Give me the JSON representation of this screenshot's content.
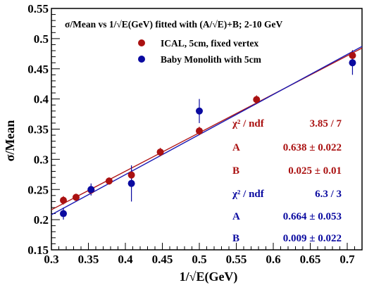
{
  "colors": {
    "ical": "#aa1111",
    "monolith": "#0a0aa0",
    "fit_ical": "#b01515",
    "fit_monolith": "#1a1ab4"
  },
  "chart_data": {
    "type": "scatter",
    "title": "σ/Mean vs 1/√E(GeV) fitted with (A/√E)+B; 2-10 GeV",
    "xlabel": "1/√E(GeV)",
    "ylabel": "σ/Mean",
    "xlim": [
      0.3,
      0.72
    ],
    "ylim": [
      0.15,
      0.55
    ],
    "xticks": [
      "0.3",
      "0.35",
      "0.4",
      "0.45",
      "0.5",
      "0.55",
      "0.6",
      "0.65",
      "0.7"
    ],
    "yticks": [
      "0.15",
      "0.2",
      "0.25",
      "0.3",
      "0.35",
      "0.4",
      "0.45",
      "0.5",
      "0.55"
    ],
    "grid": false,
    "legend_position": "top-left",
    "series": [
      {
        "name": "ICAL, 5cm, fixed vertex",
        "color": "#aa1111",
        "x": [
          0.3162,
          0.3333,
          0.3536,
          0.378,
          0.4082,
          0.4472,
          0.5,
          0.5774,
          0.7071
        ],
        "y": [
          0.232,
          0.237,
          0.249,
          0.264,
          0.274,
          0.312,
          0.347,
          0.399,
          0.472
        ],
        "yerr": [
          0.007,
          0.006,
          0.007,
          0.006,
          0.009,
          0.007,
          0.007,
          0.007,
          0.009
        ],
        "fit": {
          "A": 0.638,
          "B": 0.025
        }
      },
      {
        "name": "Baby Monolith with 5cm",
        "color": "#0a0aa0",
        "x": [
          0.3162,
          0.3536,
          0.4082,
          0.5,
          0.7071
        ],
        "y": [
          0.21,
          0.25,
          0.26,
          0.38,
          0.46
        ],
        "yerr": [
          0.01,
          0.01,
          0.03,
          0.02,
          0.02
        ],
        "fit": {
          "A": 0.664,
          "B": 0.009
        }
      }
    ],
    "fit_stats": [
      {
        "color": "#aa1111",
        "chi2_label": "χ² / ndf",
        "chi2_value": "3.85 / 7",
        "A_label": "A",
        "A_value": "0.638 ± 0.022",
        "B_label": "B",
        "B_value": "0.025 ± 0.01"
      },
      {
        "color": "#0a0aa0",
        "chi2_label": "χ² / ndf",
        "chi2_value": "6.3 / 3",
        "A_label": "A",
        "A_value": "0.664 ± 0.053",
        "B_label": "B",
        "B_value": "0.009 ± 0.022"
      }
    ]
  }
}
